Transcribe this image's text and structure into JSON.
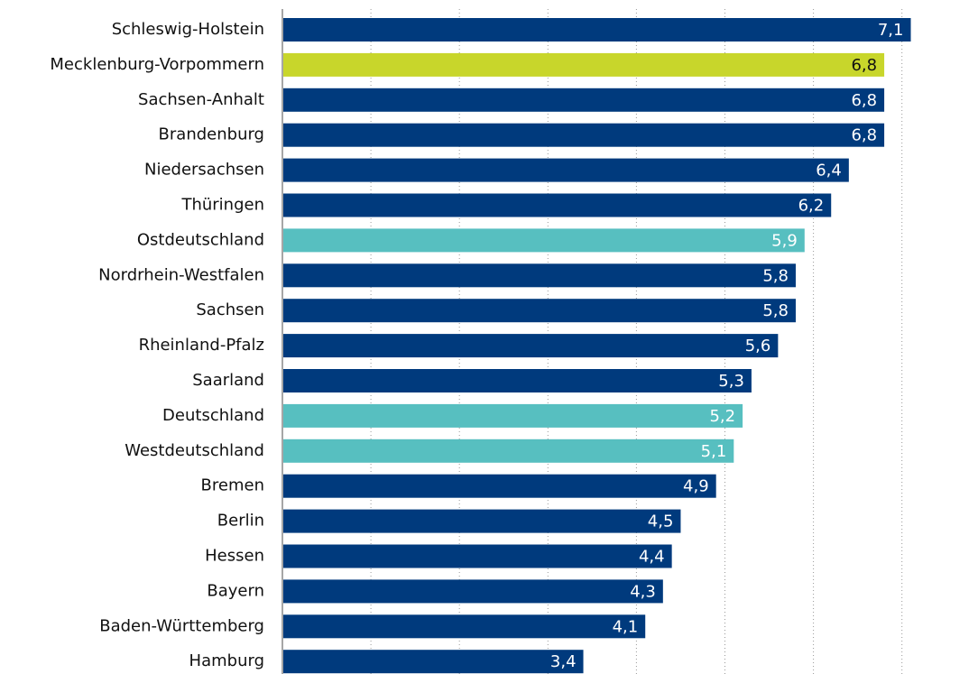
{
  "chart_data": {
    "type": "bar",
    "orientation": "horizontal",
    "categories": [
      "Schleswig-Holstein",
      "Mecklenburg-Vorpommern",
      "Sachsen-Anhalt",
      "Brandenburg",
      "Niedersachsen",
      "Thüringen",
      "Ostdeutschland",
      "Nordrhein-Westfalen",
      "Sachsen",
      "Rheinland-Pfalz",
      "Saarland",
      "Deutschland",
      "Westdeutschland",
      "Bremen",
      "Berlin",
      "Hessen",
      "Bayern",
      "Baden-Württemberg",
      "Hamburg"
    ],
    "values": [
      7.1,
      6.8,
      6.8,
      6.8,
      6.4,
      6.2,
      5.9,
      5.8,
      5.8,
      5.6,
      5.3,
      5.2,
      5.1,
      4.9,
      4.5,
      4.4,
      4.3,
      4.1,
      3.4
    ],
    "value_labels": [
      "7,1",
      "6,8",
      "6,8",
      "6,8",
      "6,4",
      "6,2",
      "5,9",
      "5,8",
      "5,8",
      "5,6",
      "5,3",
      "5,2",
      "5,1",
      "4,9",
      "4,5",
      "4,4",
      "4,3",
      "4,1",
      "3,4"
    ],
    "colors": [
      "#003a7d",
      "#c8d62b",
      "#003a7d",
      "#003a7d",
      "#003a7d",
      "#003a7d",
      "#57bfc0",
      "#003a7d",
      "#003a7d",
      "#003a7d",
      "#003a7d",
      "#57bfc0",
      "#57bfc0",
      "#003a7d",
      "#003a7d",
      "#003a7d",
      "#003a7d",
      "#003a7d",
      "#003a7d"
    ],
    "xlim": [
      0,
      7.6
    ],
    "xticks": [
      0,
      1,
      2,
      3,
      4,
      5,
      6,
      7
    ],
    "grid": true
  }
}
